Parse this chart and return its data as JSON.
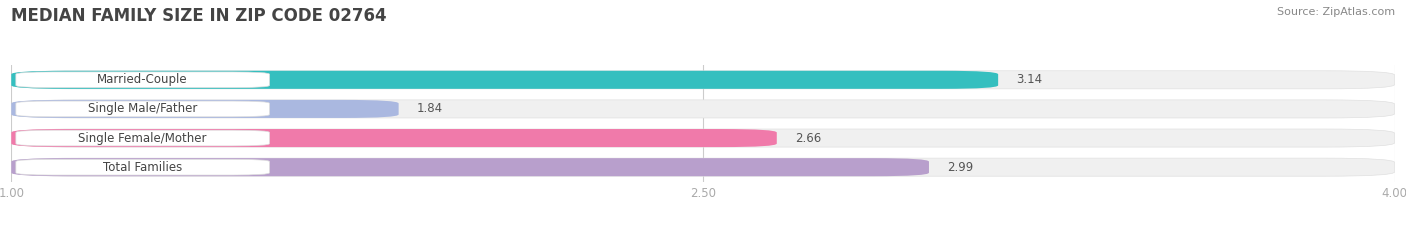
{
  "title": "MEDIAN FAMILY SIZE IN ZIP CODE 02764",
  "source": "Source: ZipAtlas.com",
  "categories": [
    "Married-Couple",
    "Single Male/Father",
    "Single Female/Mother",
    "Total Families"
  ],
  "values": [
    3.14,
    1.84,
    2.66,
    2.99
  ],
  "bar_colors": [
    "#35bfbf",
    "#aab8e0",
    "#f07aaa",
    "#b89fcc"
  ],
  "bar_bg_colors": [
    "#eeeeee",
    "#eeeeee",
    "#eeeeee",
    "#eeeeee"
  ],
  "xlim": [
    1.0,
    4.0
  ],
  "xticks": [
    1.0,
    2.5,
    4.0
  ],
  "xtick_labels": [
    "1.00",
    "2.50",
    "4.00"
  ],
  "background_color": "#ffffff",
  "title_color": "#555555",
  "title_fontsize": 12,
  "label_fontsize": 8.5,
  "value_fontsize": 8.5,
  "source_fontsize": 8
}
